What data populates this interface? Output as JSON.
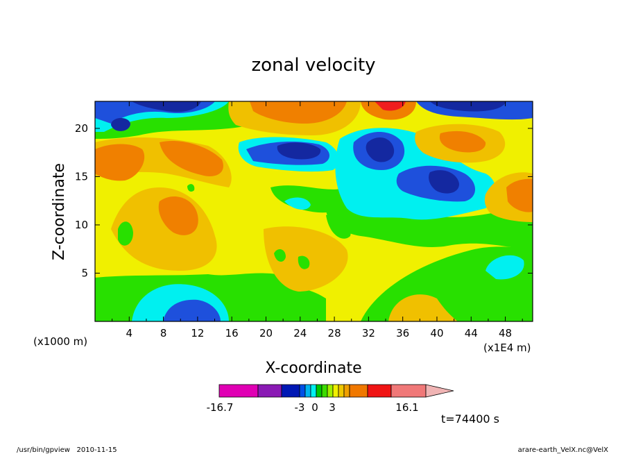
{
  "chart_data": {
    "type": "heatmap",
    "title": "zonal velocity",
    "xlabel": "X-coordinate",
    "ylabel": "Z-coordinate",
    "x_unit": "(x1E4 m)",
    "y_unit": "(x1000 m)",
    "xlim": [
      0,
      51.2
    ],
    "ylim": [
      0,
      22.8
    ],
    "x_ticks": [
      4,
      8,
      12,
      16,
      20,
      24,
      28,
      32,
      36,
      40,
      44,
      48
    ],
    "y_ticks": [
      5,
      10,
      15,
      20
    ],
    "x_tick_labels": [
      "4",
      "8",
      "12",
      "16",
      "20",
      "24",
      "28",
      "32",
      "36",
      "40",
      "44",
      "48"
    ],
    "y_tick_labels": [
      "5",
      "10",
      "15",
      "20"
    ],
    "time_label": "t=74400 s",
    "colorbar": {
      "min_label": "-16.7",
      "max_label": "16.1",
      "mid_labels": [
        "-3",
        "0",
        "3"
      ],
      "colors": [
        "#e000b4",
        "#8a1ab4",
        "#0018b4",
        "#0050e6",
        "#00b4f0",
        "#00f0f0",
        "#00c800",
        "#3cdc00",
        "#a0f000",
        "#f0f000",
        "#f0c800",
        "#f0a000",
        "#f07800",
        "#f01414",
        "#f07878",
        "#f0b4b4"
      ]
    },
    "field_legend": {
      "dark_blue": "#1428a0",
      "blue": "#1e50dc",
      "cyan": "#00f0f0",
      "green": "#28e000",
      "yellow": "#f0f000",
      "light_orange": "#f0c000",
      "orange": "#f08000",
      "red": "#f01e1e"
    }
  },
  "footer": {
    "left": "/usr/bin/gpview   2010-11-15",
    "right": "arare-earth_VelX.nc@VelX"
  }
}
